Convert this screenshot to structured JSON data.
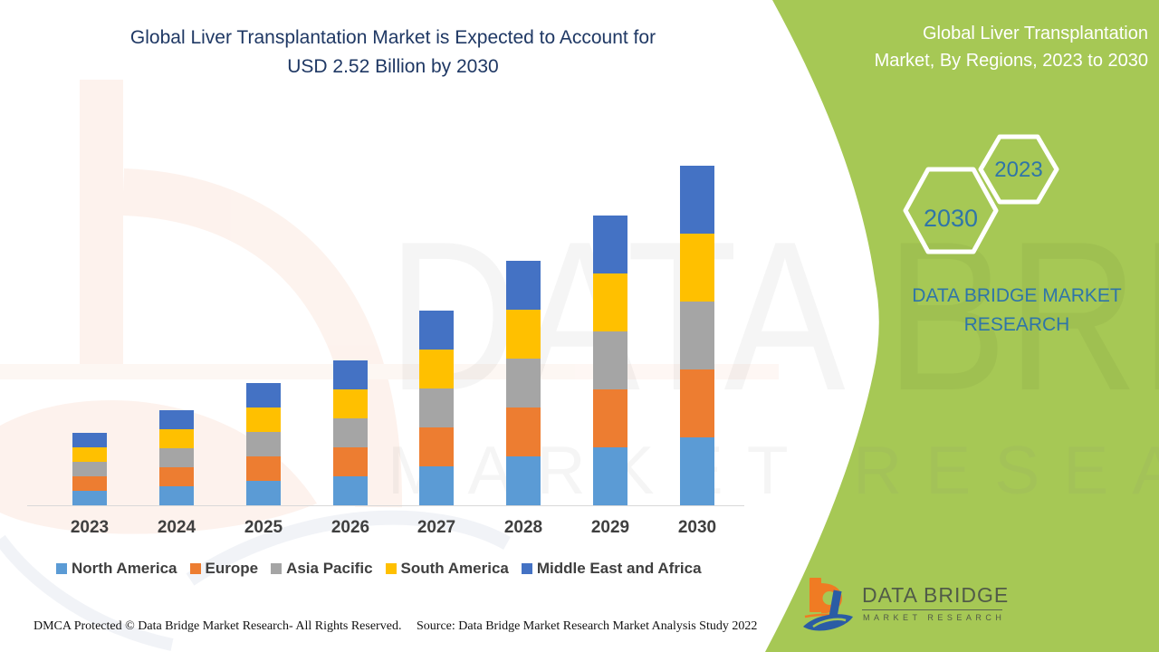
{
  "colors": {
    "green_bg": "#a6c855",
    "title_navy": "#1f3864",
    "accent_blue": "#2f75a8",
    "axis_text": "#3f3f3f",
    "axis_line": "#d9d9d9",
    "logo_orange": "#f07b23",
    "logo_blue": "#2b5ca5",
    "logo_text": "#515b48"
  },
  "header": {
    "title_line1": "Global Liver Transplantation Market is Expected to Account for",
    "title_line2": "USD 2.52 Billion by 2030"
  },
  "side_panel": {
    "title_line1": "Global Liver Transplantation",
    "title_line2": "Market, By Regions, 2023 to 2030",
    "hex_large_label": "2030",
    "hex_small_label": "2023",
    "brand_line1": "DATA BRIDGE MARKET",
    "brand_line2": "RESEARCH"
  },
  "watermark": {
    "big_text": "DATA BRIDGE",
    "row_text": "MARKET RESEARCH"
  },
  "chart_data": {
    "type": "bar",
    "stacked": true,
    "title": "Global Liver Transplantation Market, By Regions, 2023 to 2030",
    "unit": "USD Billion",
    "categories": [
      "2023",
      "2024",
      "2025",
      "2026",
      "2027",
      "2028",
      "2029",
      "2030"
    ],
    "totals": [
      0.53,
      0.71,
      0.9,
      1.08,
      1.43,
      1.8,
      2.15,
      2.52
    ],
    "series": [
      {
        "name": "North America",
        "color": "#5b9bd5",
        "values": [
          0.106,
          0.142,
          0.18,
          0.216,
          0.286,
          0.36,
          0.43,
          0.504
        ]
      },
      {
        "name": "Europe",
        "color": "#ed7d31",
        "values": [
          0.106,
          0.142,
          0.18,
          0.216,
          0.286,
          0.36,
          0.43,
          0.504
        ]
      },
      {
        "name": "Asia Pacific",
        "color": "#a5a5a5",
        "values": [
          0.106,
          0.142,
          0.18,
          0.216,
          0.286,
          0.36,
          0.43,
          0.504
        ]
      },
      {
        "name": "South America",
        "color": "#ffc000",
        "values": [
          0.106,
          0.142,
          0.18,
          0.216,
          0.286,
          0.36,
          0.43,
          0.504
        ]
      },
      {
        "name": "Middle East and Africa",
        "color": "#4472c4",
        "values": [
          0.106,
          0.142,
          0.18,
          0.216,
          0.286,
          0.36,
          0.43,
          0.504
        ]
      }
    ],
    "y_axis_visible": false,
    "grid": false,
    "legend_position": "bottom"
  },
  "footer": {
    "dmca": "DMCA Protected © Data Bridge Market Research- All Rights Reserved.",
    "source": "Source: Data Bridge Market Research Market Analysis Study 2022"
  },
  "logo": {
    "line1": "DATA BRIDGE",
    "line2": "MARKET RESEARCH"
  }
}
